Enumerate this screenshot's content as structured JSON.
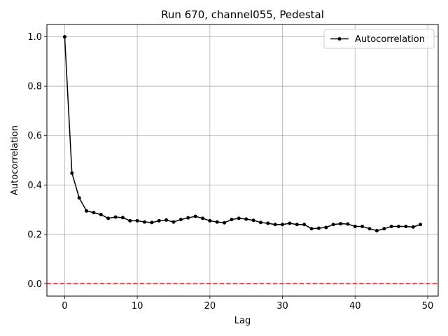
{
  "chart_data": {
    "type": "line",
    "title": "Run 670, channel055, Pedestal",
    "xlabel": "Lag",
    "ylabel": "Autocorrelation",
    "xlim": [
      -2.45,
      51.45
    ],
    "ylim": [
      -0.05,
      1.05
    ],
    "xticks": [
      0,
      10,
      20,
      30,
      40,
      50
    ],
    "yticks": [
      0.0,
      0.2,
      0.4,
      0.6,
      0.8,
      1.0
    ],
    "xtick_labels": [
      "0",
      "10",
      "20",
      "30",
      "40",
      "50"
    ],
    "ytick_labels": [
      "0.0",
      "0.2",
      "0.4",
      "0.6",
      "0.8",
      "1.0"
    ],
    "grid": true,
    "legend_position": "top-right",
    "series": [
      {
        "name": "Autocorrelation",
        "color": "#000000",
        "marker": "circle",
        "x": [
          0,
          1,
          2,
          3,
          4,
          5,
          6,
          7,
          8,
          9,
          10,
          11,
          12,
          13,
          14,
          15,
          16,
          17,
          18,
          19,
          20,
          21,
          22,
          23,
          24,
          25,
          26,
          27,
          28,
          29,
          30,
          31,
          32,
          33,
          34,
          35,
          36,
          37,
          38,
          39,
          40,
          41,
          42,
          43,
          44,
          45,
          46,
          47,
          48,
          49
        ],
        "values": [
          1.0,
          0.448,
          0.348,
          0.295,
          0.288,
          0.28,
          0.265,
          0.27,
          0.268,
          0.255,
          0.255,
          0.25,
          0.248,
          0.255,
          0.258,
          0.25,
          0.26,
          0.267,
          0.273,
          0.265,
          0.255,
          0.25,
          0.247,
          0.26,
          0.265,
          0.262,
          0.257,
          0.248,
          0.245,
          0.24,
          0.24,
          0.245,
          0.24,
          0.24,
          0.223,
          0.225,
          0.228,
          0.24,
          0.243,
          0.242,
          0.232,
          0.232,
          0.223,
          0.215,
          0.223,
          0.232,
          0.232,
          0.232,
          0.23,
          0.24
        ]
      }
    ],
    "reference_line": {
      "y": 0.0,
      "color": "#ff0000",
      "style": "dashed"
    }
  }
}
